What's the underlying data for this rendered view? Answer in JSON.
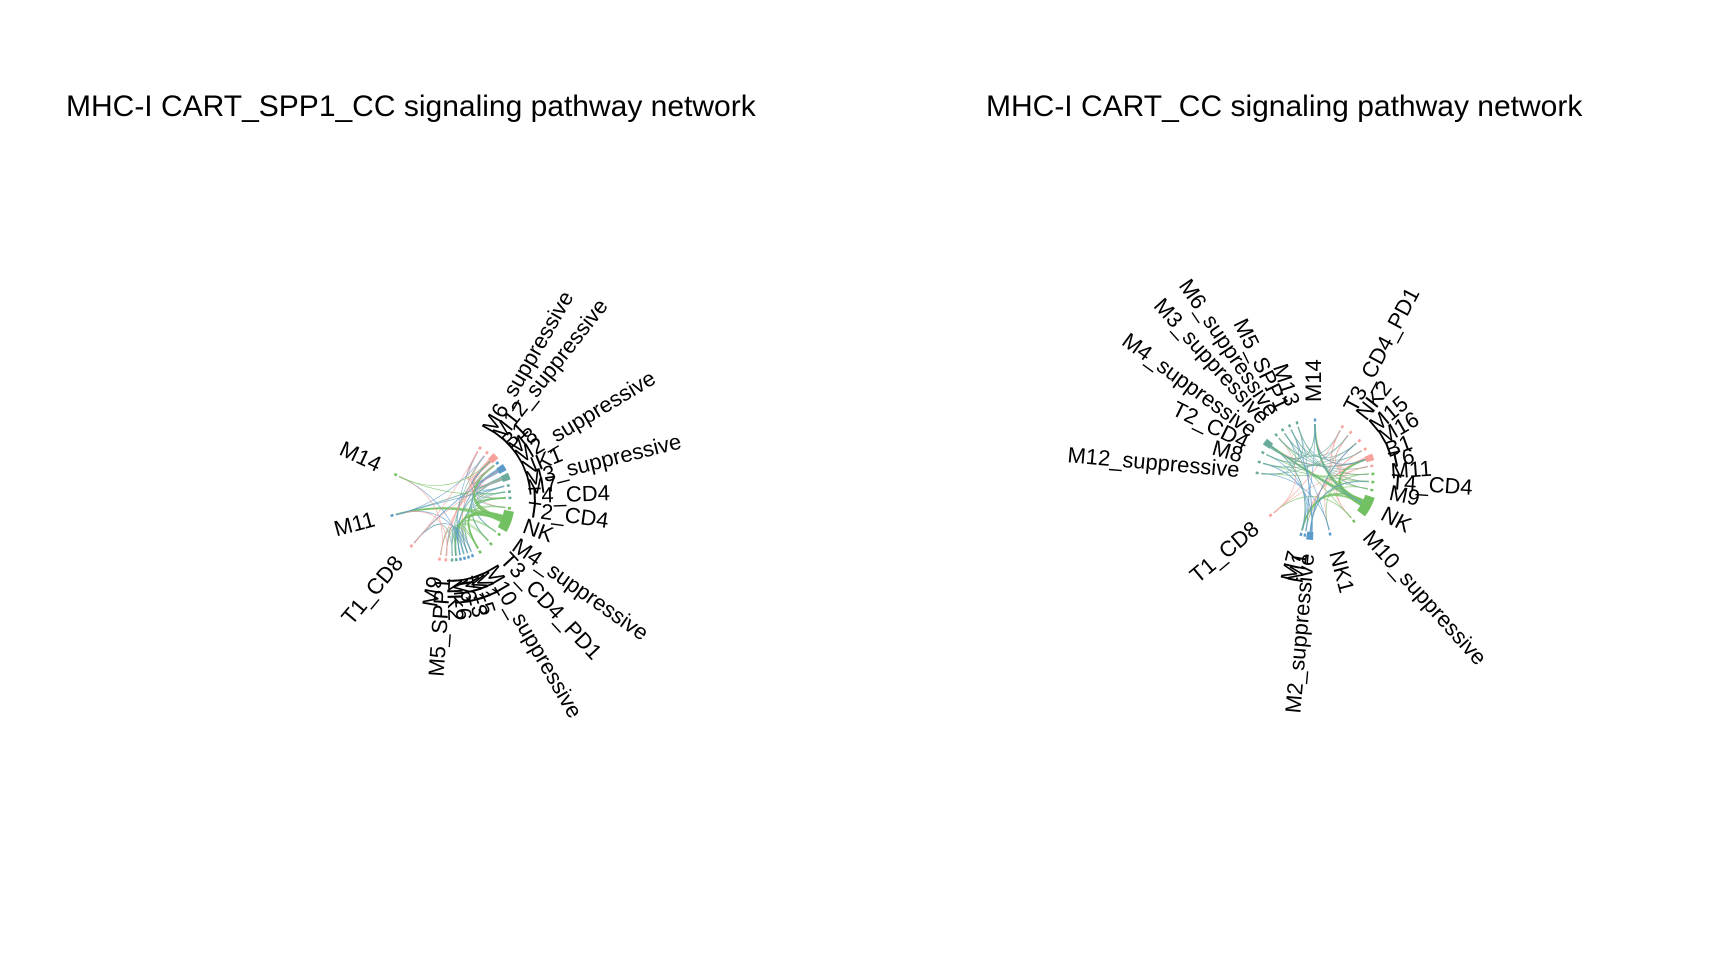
{
  "colors": {
    "red": "#f8a09b",
    "blue": "#5b9bc9",
    "green": "#72c062",
    "teal": "#6aab9c"
  },
  "panels": [
    {
      "title": "MHC-I CART_SPP1_CC signaling pathway network",
      "nodes": [
        {
          "label": "M6_suppressive",
          "color": "#f8a09b",
          "weight": 0.2
        },
        {
          "label": "M12_suppressive",
          "color": "#f8a09b",
          "weight": 0.2
        },
        {
          "label": "B1",
          "color": "#f8a09b",
          "weight": 1.0
        },
        {
          "label": "M8",
          "color": "#5b9bc9",
          "weight": 0.2
        },
        {
          "label": "M2_suppressive",
          "color": "#5b9bc9",
          "weight": 1.0
        },
        {
          "label": "NK1",
          "color": "#6aab9c",
          "weight": 1.0
        },
        {
          "label": "M3_suppressive",
          "color": "#6aab9c",
          "weight": 0.2
        },
        {
          "label": "M7",
          "color": "#6aab9c",
          "weight": 0.2
        },
        {
          "label": "T4_CD4",
          "color": "#6aab9c",
          "weight": 0.2
        },
        {
          "label": "T2_CD4",
          "color": "#72c062",
          "weight": 0.2
        },
        {
          "label": "NK",
          "color": "#72c062",
          "weight": 3.0
        },
        {
          "label": "M4_suppressive",
          "color": "#72c062",
          "weight": 0.2
        },
        {
          "label": "T3_CD4_PD1",
          "color": "#72c062",
          "weight": 0.2
        },
        {
          "label": "M10_suppressive",
          "color": "#72c062",
          "weight": 0.2
        },
        {
          "label": "M1",
          "color": "#5b9bc9",
          "weight": 0.2
        },
        {
          "label": "M15",
          "color": "#5b9bc9",
          "weight": 0.2
        },
        {
          "label": "M13",
          "color": "#5b9bc9",
          "weight": 0.2
        },
        {
          "label": "T6",
          "color": "#5b9bc9",
          "weight": 0.2
        },
        {
          "label": "M16",
          "color": "#6aab9c",
          "weight": 0.2
        },
        {
          "label": "NK2",
          "color": "#6aab9c",
          "weight": 0.2
        },
        {
          "label": "M5_SPP1",
          "color": "#f8a09b",
          "weight": 0.2
        },
        {
          "label": "M9",
          "color": "#f8a09b",
          "weight": 0.2
        },
        {
          "label": "T1_CD8",
          "color": "#f8a09b",
          "weight": 0.2
        },
        {
          "label": "M11",
          "color": "#5b9bc9",
          "weight": 0.2
        },
        {
          "label": "M14",
          "color": "#72c062",
          "weight": 0.2
        }
      ]
    },
    {
      "title": "MHC-I CART_CC signaling pathway network",
      "nodes": [
        {
          "label": "T3_CD4_PD1",
          "color": "#f8a09b",
          "weight": 0.2
        },
        {
          "label": "NK2",
          "color": "#f8a09b",
          "weight": 0.2
        },
        {
          "label": "M15",
          "color": "#f8a09b",
          "weight": 0.2
        },
        {
          "label": "M16",
          "color": "#f8a09b",
          "weight": 0.2
        },
        {
          "label": "B1",
          "color": "#f8a09b",
          "weight": 1.0
        },
        {
          "label": "T6",
          "color": "#f8a09b",
          "weight": 0.2
        },
        {
          "label": "M11",
          "color": "#72c062",
          "weight": 0.2
        },
        {
          "label": "T4_CD4",
          "color": "#72c062",
          "weight": 0.2
        },
        {
          "label": "M9",
          "color": "#72c062",
          "weight": 0.2
        },
        {
          "label": "NK",
          "color": "#72c062",
          "weight": 3.0
        },
        {
          "label": "M10_suppressive",
          "color": "#72c062",
          "weight": 0.2
        },
        {
          "label": "NK1",
          "color": "#5b9bc9",
          "weight": 0.2
        },
        {
          "label": "M2_suppressive",
          "color": "#5b9bc9",
          "weight": 1.0
        },
        {
          "label": "M1",
          "color": "#5b9bc9",
          "weight": 0.2
        },
        {
          "label": "M7",
          "color": "#5b9bc9",
          "weight": 0.2
        },
        {
          "label": "T1_CD8",
          "color": "#f8a09b",
          "weight": 0.2
        },
        {
          "label": "M12_suppressive",
          "color": "#6aab9c",
          "weight": 0.2
        },
        {
          "label": "M8",
          "color": "#6aab9c",
          "weight": 0.2
        },
        {
          "label": "T2_CD4",
          "color": "#6aab9c",
          "weight": 0.2
        },
        {
          "label": "M4_suppressive",
          "color": "#6aab9c",
          "weight": 1.0
        },
        {
          "label": "M3_suppressive",
          "color": "#6aab9c",
          "weight": 0.2
        },
        {
          "label": "M6_suppressive",
          "color": "#6aab9c",
          "weight": 0.2
        },
        {
          "label": "M5_SPP1",
          "color": "#6aab9c",
          "weight": 0.2
        },
        {
          "label": "M13",
          "color": "#6aab9c",
          "weight": 0.2
        },
        {
          "label": "M14",
          "color": "#5b9bc9",
          "weight": 0.2
        }
      ]
    }
  ]
}
